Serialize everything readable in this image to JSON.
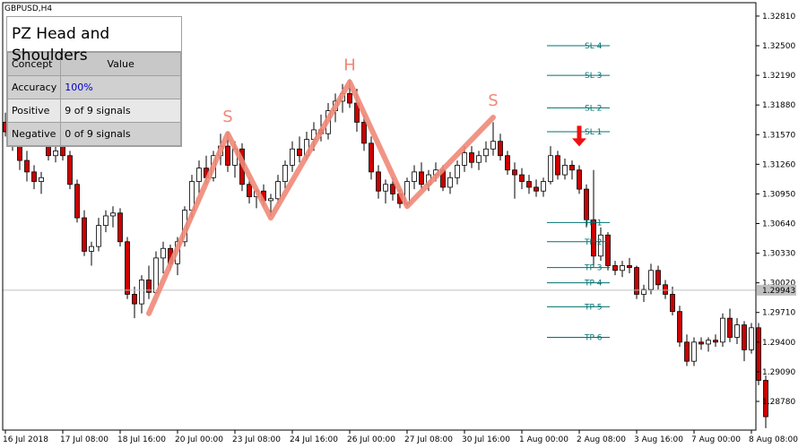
{
  "symbol": "GBPUSD,H4",
  "panel": {
    "title": "PZ Head and Shoulders",
    "headers": [
      "Concept",
      "Value"
    ],
    "rows": [
      {
        "concept": "Accuracy",
        "value": "100%"
      },
      {
        "concept": "Positive",
        "value": "9 of 9 signals"
      },
      {
        "concept": "Negative",
        "value": "0 of 9 signals"
      }
    ]
  },
  "current_price_label": "1.29943",
  "pattern_labels": {
    "left_shoulder": "S",
    "head": "H",
    "right_shoulder": "S"
  },
  "levels": [
    {
      "label": "SL 4",
      "price": 1.325
    },
    {
      "label": "SL 3",
      "price": 1.3219
    },
    {
      "label": "SL 2",
      "price": 1.3185
    },
    {
      "label": "SL 1",
      "price": 1.316
    },
    {
      "label": "TP 1",
      "price": 1.3065
    },
    {
      "label": "TP 2",
      "price": 1.3045
    },
    {
      "label": "TP 3",
      "price": 1.3018
    },
    {
      "label": "TP 4",
      "price": 1.3002
    },
    {
      "label": "TP 5",
      "price": 1.2977
    },
    {
      "label": "TP 6",
      "price": 1.2945
    }
  ],
  "colors": {
    "bear": "#cc0000",
    "bull": "#ffffff",
    "pattern": "#f08878",
    "level": "#007070",
    "arrow": "#ee1111",
    "price_line": "#c0c0c0",
    "price_tag": "#c0c0c0"
  },
  "chart_data": {
    "type": "candlestick",
    "title": "GBPUSD,H4",
    "xlabel": "",
    "ylabel": "",
    "ylim": [
      1.2848,
      1.3295
    ],
    "yticks": [
      1.3281,
      1.325,
      1.3219,
      1.3188,
      1.3157,
      1.3126,
      1.3095,
      1.3064,
      1.3033,
      1.3002,
      1.2971,
      1.294,
      1.2909,
      1.2878
    ],
    "xtick_labels": [
      {
        "i": 0,
        "label": "16 Jul 2018"
      },
      {
        "i": 8,
        "label": "17 Jul 08:00"
      },
      {
        "i": 16,
        "label": "18 Jul 16:00"
      },
      {
        "i": 24,
        "label": "20 Jul 00:00"
      },
      {
        "i": 32,
        "label": "23 Jul 08:00"
      },
      {
        "i": 40,
        "label": "24 Jul 16:00"
      },
      {
        "i": 48,
        "label": "26 Jul 00:00"
      },
      {
        "i": 56,
        "label": "27 Jul 08:00"
      },
      {
        "i": 64,
        "label": "30 Jul 16:00"
      },
      {
        "i": 72,
        "label": "1 Aug 00:00"
      },
      {
        "i": 80,
        "label": "2 Aug 08:00"
      },
      {
        "i": 88,
        "label": "3 Aug 16:00"
      },
      {
        "i": 96,
        "label": "7 Aug 00:00"
      },
      {
        "i": 104,
        "label": "8 Aug 08:00"
      }
    ],
    "pattern_path": [
      {
        "i": 20,
        "price": 1.297
      },
      {
        "i": 31,
        "price": 1.3158
      },
      {
        "i": 37,
        "price": 1.307
      },
      {
        "i": 48,
        "price": 1.3212
      },
      {
        "i": 56,
        "price": 1.3082
      },
      {
        "i": 68,
        "price": 1.3175
      }
    ],
    "signal_arrow": {
      "i": 80,
      "price": 1.314,
      "direction": "down"
    },
    "current_price": 1.29943,
    "candles": [
      [
        1.317,
        1.318,
        1.3155,
        1.316
      ],
      [
        1.316,
        1.3168,
        1.314,
        1.315
      ],
      [
        1.315,
        1.3155,
        1.312,
        1.313
      ],
      [
        1.313,
        1.314,
        1.3108,
        1.3118
      ],
      [
        1.3118,
        1.3125,
        1.31,
        1.3108
      ],
      [
        1.3108,
        1.3118,
        1.3095,
        1.3112
      ],
      [
        1.315,
        1.3165,
        1.313,
        1.3135
      ],
      [
        1.3135,
        1.3148,
        1.3128,
        1.314
      ],
      [
        1.3155,
        1.3162,
        1.313,
        1.3135
      ],
      [
        1.3135,
        1.314,
        1.31,
        1.3105
      ],
      [
        1.3105,
        1.311,
        1.3065,
        1.307
      ],
      [
        1.307,
        1.3078,
        1.303,
        1.3035
      ],
      [
        1.3035,
        1.3045,
        1.302,
        1.304
      ],
      [
        1.304,
        1.307,
        1.3035,
        1.3062
      ],
      [
        1.3062,
        1.3078,
        1.3055,
        1.3072
      ],
      [
        1.3072,
        1.3082,
        1.306,
        1.3075
      ],
      [
        1.3075,
        1.308,
        1.304,
        1.3045
      ],
      [
        1.3045,
        1.305,
        1.2985,
        1.299
      ],
      [
        1.299,
        1.2998,
        1.2965,
        1.298
      ],
      [
        1.298,
        1.301,
        1.297,
        1.3005
      ],
      [
        1.3005,
        1.302,
        1.2985,
        1.2992
      ],
      [
        1.2992,
        1.3035,
        1.299,
        1.3028
      ],
      [
        1.3028,
        1.3045,
        1.3012,
        1.3038
      ],
      [
        1.3038,
        1.3042,
        1.3015,
        1.3022
      ],
      [
        1.3022,
        1.305,
        1.301,
        1.3045
      ],
      [
        1.3045,
        1.3082,
        1.304,
        1.3078
      ],
      [
        1.3078,
        1.3115,
        1.307,
        1.3108
      ],
      [
        1.3108,
        1.313,
        1.3095,
        1.3122
      ],
      [
        1.3122,
        1.3135,
        1.3105,
        1.3112
      ],
      [
        1.3112,
        1.314,
        1.3108,
        1.3135
      ],
      [
        1.3135,
        1.3158,
        1.3125,
        1.3145
      ],
      [
        1.3145,
        1.316,
        1.3118,
        1.3125
      ],
      [
        1.3125,
        1.315,
        1.3112,
        1.3142
      ],
      [
        1.3142,
        1.3148,
        1.3098,
        1.3105
      ],
      [
        1.3105,
        1.3112,
        1.3085,
        1.3092
      ],
      [
        1.3092,
        1.31,
        1.308,
        1.3098
      ],
      [
        1.3098,
        1.3105,
        1.3082,
        1.3088
      ],
      [
        1.3088,
        1.3095,
        1.3072,
        1.309
      ],
      [
        1.309,
        1.3115,
        1.3085,
        1.3108
      ],
      [
        1.3108,
        1.313,
        1.31,
        1.3125
      ],
      [
        1.3125,
        1.315,
        1.3118,
        1.3142
      ],
      [
        1.3142,
        1.3155,
        1.3128,
        1.3135
      ],
      [
        1.3135,
        1.316,
        1.313,
        1.3152
      ],
      [
        1.3152,
        1.317,
        1.314,
        1.3162
      ],
      [
        1.3162,
        1.3178,
        1.315,
        1.3158
      ],
      [
        1.3158,
        1.319,
        1.3152,
        1.3182
      ],
      [
        1.3182,
        1.32,
        1.317,
        1.3192
      ],
      [
        1.3192,
        1.321,
        1.318,
        1.32
      ],
      [
        1.32,
        1.3215,
        1.3185,
        1.319
      ],
      [
        1.319,
        1.3205,
        1.316,
        1.317
      ],
      [
        1.317,
        1.3178,
        1.314,
        1.3148
      ],
      [
        1.3148,
        1.3155,
        1.311,
        1.3118
      ],
      [
        1.3118,
        1.3125,
        1.309,
        1.3098
      ],
      [
        1.3098,
        1.311,
        1.3085,
        1.3105
      ],
      [
        1.3105,
        1.3112,
        1.3088,
        1.3095
      ],
      [
        1.3095,
        1.31,
        1.308,
        1.3085
      ],
      [
        1.3085,
        1.3112,
        1.3082,
        1.3108
      ],
      [
        1.3108,
        1.3125,
        1.31,
        1.3118
      ],
      [
        1.3118,
        1.3128,
        1.31,
        1.3105
      ],
      [
        1.3105,
        1.312,
        1.3098,
        1.3115
      ],
      [
        1.3115,
        1.3128,
        1.3108,
        1.312
      ],
      [
        1.312,
        1.3125,
        1.3098,
        1.3102
      ],
      [
        1.3102,
        1.3118,
        1.3095,
        1.3112
      ],
      [
        1.3112,
        1.313,
        1.3105,
        1.3125
      ],
      [
        1.3125,
        1.3145,
        1.3118,
        1.3138
      ],
      [
        1.3138,
        1.3145,
        1.3122,
        1.3128
      ],
      [
        1.3128,
        1.314,
        1.312,
        1.3135
      ],
      [
        1.3135,
        1.315,
        1.3128,
        1.3142
      ],
      [
        1.3142,
        1.317,
        1.3135,
        1.315
      ],
      [
        1.315,
        1.3158,
        1.313,
        1.3135
      ],
      [
        1.3135,
        1.314,
        1.3115,
        1.312
      ],
      [
        1.312,
        1.3128,
        1.309,
        1.3115
      ],
      [
        1.3115,
        1.3122,
        1.31,
        1.3108
      ],
      [
        1.3108,
        1.3115,
        1.3095,
        1.3102
      ],
      [
        1.3102,
        1.311,
        1.3092,
        1.3098
      ],
      [
        1.3098,
        1.3112,
        1.3092,
        1.3108
      ],
      [
        1.3108,
        1.3145,
        1.3105,
        1.3135
      ],
      [
        1.3135,
        1.314,
        1.311,
        1.3115
      ],
      [
        1.3115,
        1.3132,
        1.311,
        1.3125
      ],
      [
        1.3125,
        1.313,
        1.311,
        1.312
      ],
      [
        1.312,
        1.3125,
        1.3095,
        1.31
      ],
      [
        1.31,
        1.3105,
        1.306,
        1.3068
      ],
      [
        1.3068,
        1.312,
        1.302,
        1.303
      ],
      [
        1.303,
        1.306,
        1.3025,
        1.3052
      ],
      [
        1.3052,
        1.3055,
        1.3015,
        1.302
      ],
      [
        1.302,
        1.3025,
        1.301,
        1.3015
      ],
      [
        1.3015,
        1.3025,
        1.3008,
        1.302
      ],
      [
        1.302,
        1.3028,
        1.3012,
        1.3018
      ],
      [
        1.3018,
        1.302,
        1.2985,
        1.299
      ],
      [
        1.299,
        1.3,
        1.2982,
        1.2995
      ],
      [
        1.2995,
        1.3022,
        1.299,
        1.3015
      ],
      [
        1.3015,
        1.302,
        1.2995,
        1.3
      ],
      [
        1.3,
        1.3005,
        1.2985,
        1.299
      ],
      [
        1.299,
        1.2998,
        1.2968,
        1.2972
      ],
      [
        1.2972,
        1.2978,
        1.2935,
        1.294
      ],
      [
        1.294,
        1.2948,
        1.2915,
        1.292
      ],
      [
        1.292,
        1.2945,
        1.2915,
        1.294
      ],
      [
        1.294,
        1.2945,
        1.2932,
        1.2938
      ],
      [
        1.2938,
        1.2945,
        1.293,
        1.2942
      ],
      [
        1.2942,
        1.2948,
        1.2935,
        1.294
      ],
      [
        1.294,
        1.297,
        1.2935,
        1.2965
      ],
      [
        1.2965,
        1.2975,
        1.294,
        1.2945
      ],
      [
        1.2945,
        1.2965,
        1.2938,
        1.2958
      ],
      [
        1.2958,
        1.2962,
        1.292,
        1.2932
      ],
      [
        1.2932,
        1.296,
        1.2928,
        1.2955
      ],
      [
        1.2955,
        1.296,
        1.2895,
        1.29
      ],
      [
        1.29,
        1.2905,
        1.285,
        1.2862
      ]
    ]
  }
}
